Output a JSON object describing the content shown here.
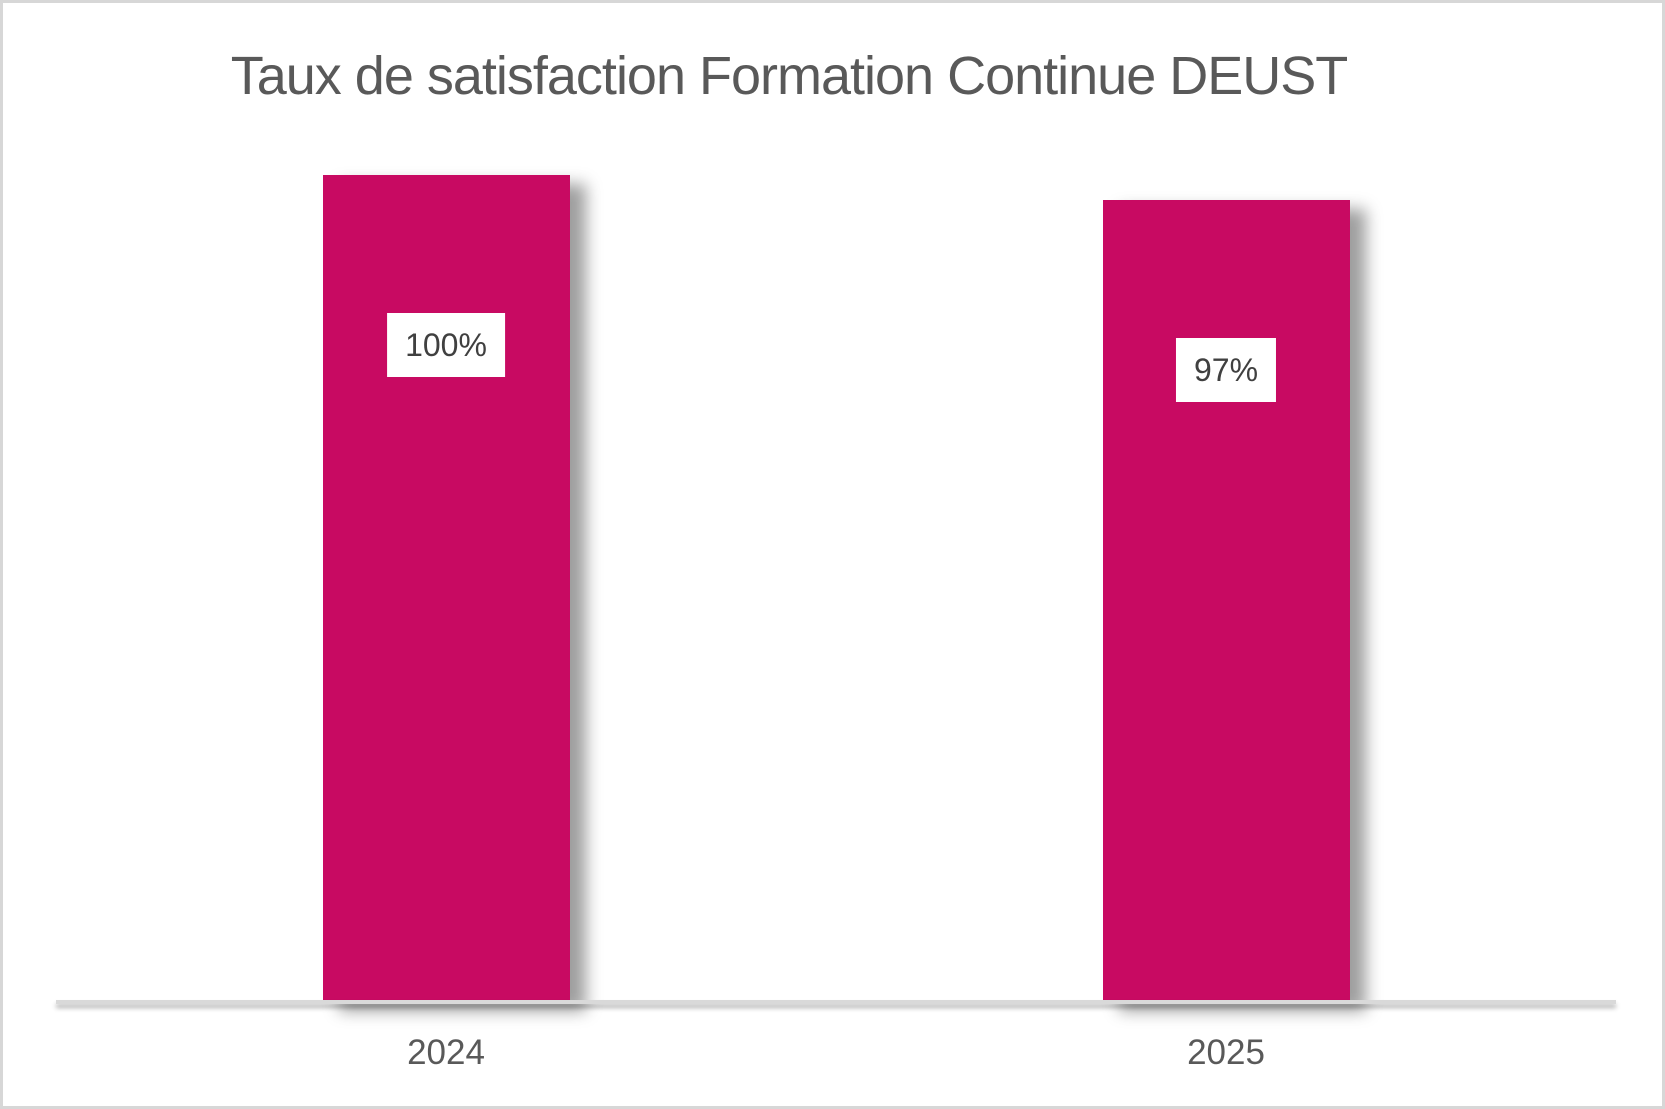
{
  "window": {
    "background": "#ffffff",
    "frame_border_color": "#d7d7d7"
  },
  "chart_data": {
    "type": "bar",
    "title": "Taux de satisfaction Formation Continue DEUST",
    "categories": [
      "2024",
      "2025"
    ],
    "values": [
      100,
      97
    ],
    "data_labels": [
      "100%",
      "97%"
    ],
    "xlabel": "",
    "ylabel": "",
    "ylim": [
      0,
      100
    ],
    "grid": false,
    "legend": "none",
    "bar_color": "#c80a62",
    "title_color": "#595959",
    "axis_label_color": "#595959",
    "data_label_color": "#404040",
    "data_label_background": "#ffffff",
    "axis_line_color": "#d9d9d9"
  }
}
